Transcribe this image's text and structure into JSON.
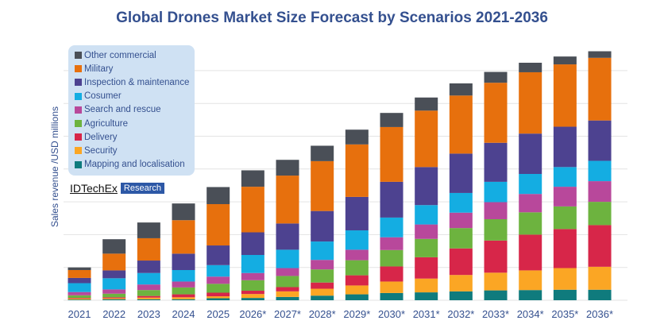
{
  "chart_data": {
    "type": "bar",
    "stacked": true,
    "title": "Global Drones Market Size Forecast by Scenarios 2021-2036",
    "xlabel": "",
    "ylabel": "Sales revenue /USD millions",
    "ylim": [
      0,
      7.8
    ],
    "y_tick_labels_shown": false,
    "grid": true,
    "legend_placement": "top-left",
    "categories": [
      "2021",
      "2022",
      "2023",
      "2024",
      "2025",
      "2026*",
      "2027*",
      "2028*",
      "2029*",
      "2030*",
      "2031*",
      "2032*",
      "2033*",
      "2034*",
      "2035*",
      "2036*"
    ],
    "series": [
      {
        "name": "Mapping and localisation",
        "color": "#0f7b7d",
        "values": [
          0.02,
          0.03,
          0.03,
          0.03,
          0.06,
          0.07,
          0.1,
          0.14,
          0.18,
          0.22,
          0.24,
          0.27,
          0.3,
          0.31,
          0.32,
          0.32
        ]
      },
      {
        "name": "Security",
        "color": "#fba624",
        "values": [
          0.03,
          0.03,
          0.05,
          0.06,
          0.06,
          0.12,
          0.17,
          0.21,
          0.27,
          0.35,
          0.42,
          0.5,
          0.54,
          0.6,
          0.66,
          0.7
        ]
      },
      {
        "name": "Delivery",
        "color": "#d72649",
        "values": [
          0.02,
          0.03,
          0.05,
          0.09,
          0.11,
          0.1,
          0.13,
          0.19,
          0.31,
          0.46,
          0.65,
          0.81,
          0.98,
          1.09,
          1.19,
          1.27
        ]
      },
      {
        "name": "Agriculture",
        "color": "#6db33f",
        "values": [
          0.08,
          0.11,
          0.18,
          0.21,
          0.27,
          0.32,
          0.34,
          0.4,
          0.46,
          0.5,
          0.56,
          0.62,
          0.65,
          0.68,
          0.69,
          0.71
        ]
      },
      {
        "name": "Search and rescue",
        "color": "#b8489b",
        "values": [
          0.1,
          0.13,
          0.17,
          0.18,
          0.22,
          0.22,
          0.24,
          0.29,
          0.32,
          0.39,
          0.44,
          0.47,
          0.52,
          0.56,
          0.6,
          0.63
        ]
      },
      {
        "name": "Cosumer",
        "color": "#14ade2",
        "values": [
          0.27,
          0.34,
          0.35,
          0.35,
          0.35,
          0.55,
          0.56,
          0.56,
          0.59,
          0.6,
          0.59,
          0.6,
          0.62,
          0.61,
          0.6,
          0.62
        ]
      },
      {
        "name": "Inspection & maintenance",
        "color": "#4d4290",
        "values": [
          0.16,
          0.24,
          0.38,
          0.5,
          0.6,
          0.69,
          0.8,
          0.93,
          1.02,
          1.09,
          1.16,
          1.2,
          1.19,
          1.23,
          1.23,
          1.23
        ]
      },
      {
        "name": "Military",
        "color": "#e7700d",
        "values": [
          0.24,
          0.51,
          0.68,
          1.02,
          1.26,
          1.39,
          1.46,
          1.52,
          1.6,
          1.67,
          1.72,
          1.77,
          1.83,
          1.87,
          1.9,
          1.91
        ]
      },
      {
        "name": "Other commercial",
        "color": "#4a4f57",
        "values": [
          0.08,
          0.44,
          0.48,
          0.51,
          0.52,
          0.5,
          0.48,
          0.47,
          0.45,
          0.43,
          0.4,
          0.37,
          0.33,
          0.29,
          0.24,
          0.2
        ]
      }
    ]
  },
  "legend_order": [
    8,
    7,
    6,
    5,
    4,
    3,
    2,
    1,
    0
  ],
  "logo": {
    "brand": "IDTechEx",
    "tag": "Research"
  },
  "colors": {
    "title": "#34508f",
    "legend_bg": "#cfe1f3",
    "grid": "#e3e3e3"
  }
}
